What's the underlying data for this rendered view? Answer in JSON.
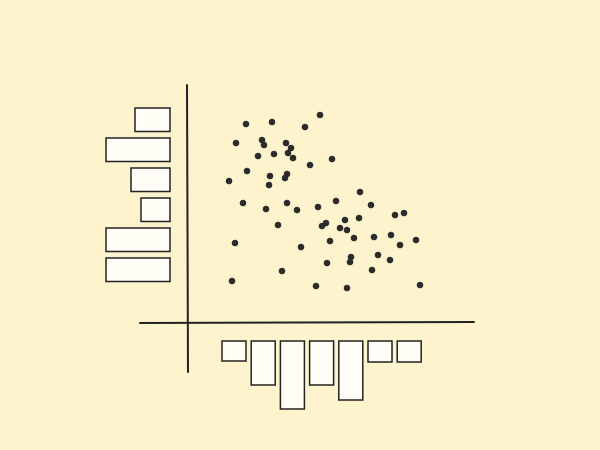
{
  "chart_data": {
    "type": "scatter",
    "x": [
      59,
      85,
      133,
      118,
      49,
      75,
      77,
      99,
      104,
      101,
      71,
      87,
      106,
      145,
      123,
      60,
      83,
      100,
      98,
      42,
      82,
      173,
      56,
      79,
      100,
      110,
      131,
      149,
      184,
      208,
      217,
      91,
      139,
      135,
      158,
      153,
      160,
      172,
      167,
      187,
      204,
      213,
      229,
      48,
      114,
      143,
      164,
      191,
      163,
      203,
      140,
      95,
      185,
      45,
      129,
      160,
      233
    ],
    "values": [
      198,
      200,
      207,
      195,
      179,
      182,
      177,
      179,
      174,
      169,
      166,
      168,
      164,
      163,
      157,
      151,
      146,
      148,
      144,
      141,
      137,
      130,
      119,
      113,
      119,
      112,
      115,
      121,
      117,
      107,
      109,
      97,
      99,
      96,
      102,
      94,
      92,
      104,
      84,
      85,
      87,
      77,
      82,
      79,
      75,
      81,
      65,
      67,
      60,
      62,
      59,
      51,
      52,
      41,
      36,
      34,
      37
    ],
    "color": "#2b2b2b",
    "xlim": [
      0,
      287
    ],
    "ylim": [
      0,
      237
    ],
    "x_hist": {
      "values": [
        20,
        44,
        68,
        44,
        59,
        21,
        21
      ]
    },
    "y_hist": {
      "values": [
        35,
        64,
        39,
        29,
        64,
        64
      ]
    }
  }
}
